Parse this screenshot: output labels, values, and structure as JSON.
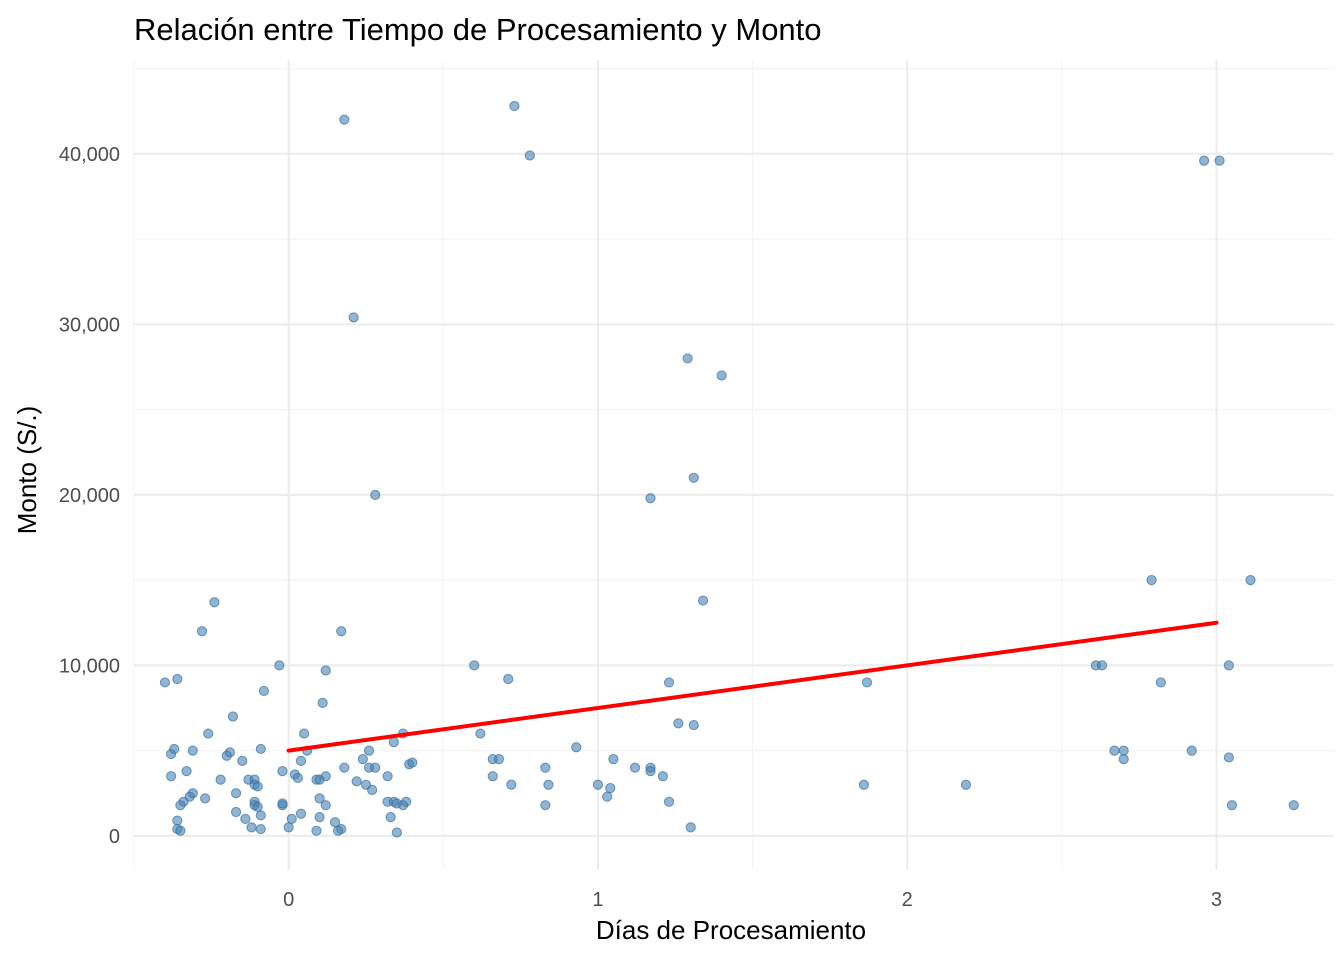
{
  "chart_data": {
    "type": "scatter",
    "title": "Relación entre Tiempo de Procesamiento y Monto",
    "xlabel": "Días de Procesamiento",
    "ylabel": "Monto (S/.)",
    "xlim": [
      -0.5,
      3.38
    ],
    "ylim": [
      -2000,
      45500
    ],
    "x_ticks": [
      0,
      1,
      2,
      3
    ],
    "x_tick_labels": [
      "0",
      "1",
      "2",
      "3"
    ],
    "y_ticks": [
      0,
      10000,
      20000,
      30000,
      40000
    ],
    "y_tick_labels": [
      "0",
      "10,000",
      "20,000",
      "30,000",
      "40,000"
    ],
    "grid": true,
    "legend": "none",
    "point_color": "#4682b4",
    "trend_color": "#ff0000",
    "trend_line": {
      "x": [
        0,
        3
      ],
      "y": [
        5000,
        12500
      ]
    },
    "points": [
      [
        0.18,
        42000
      ],
      [
        0.73,
        42800
      ],
      [
        0.78,
        39900
      ],
      [
        2.96,
        39600
      ],
      [
        3.01,
        39600
      ],
      [
        0.21,
        30400
      ],
      [
        1.29,
        28000
      ],
      [
        1.4,
        27000
      ],
      [
        1.31,
        21000
      ],
      [
        0.28,
        20000
      ],
      [
        1.17,
        19800
      ],
      [
        -0.24,
        13700
      ],
      [
        1.34,
        13800
      ],
      [
        -0.28,
        12000
      ],
      [
        0.17,
        12000
      ],
      [
        2.79,
        15000
      ],
      [
        3.11,
        15000
      ],
      [
        -0.4,
        9000
      ],
      [
        -0.36,
        9200
      ],
      [
        -0.03,
        10000
      ],
      [
        0.12,
        9700
      ],
      [
        0.6,
        10000
      ],
      [
        0.71,
        9200
      ],
      [
        1.23,
        9000
      ],
      [
        1.87,
        9000
      ],
      [
        2.61,
        10000
      ],
      [
        2.63,
        10000
      ],
      [
        2.82,
        9000
      ],
      [
        3.04,
        10000
      ],
      [
        -0.08,
        8500
      ],
      [
        0.11,
        7800
      ],
      [
        -0.18,
        7000
      ],
      [
        1.26,
        6600
      ],
      [
        1.31,
        6500
      ],
      [
        0.05,
        6000
      ],
      [
        0.62,
        6000
      ],
      [
        -0.26,
        6000
      ],
      [
        0.37,
        6000
      ],
      [
        -0.38,
        4800
      ],
      [
        -0.37,
        5100
      ],
      [
        -0.31,
        5000
      ],
      [
        -0.19,
        4900
      ],
      [
        -0.2,
        4700
      ],
      [
        -0.09,
        5100
      ],
      [
        0.06,
        5000
      ],
      [
        0.26,
        5000
      ],
      [
        0.34,
        5500
      ],
      [
        0.93,
        5200
      ],
      [
        2.67,
        5000
      ],
      [
        2.7,
        5000
      ],
      [
        2.7,
        4500
      ],
      [
        2.92,
        5000
      ],
      [
        3.04,
        4600
      ],
      [
        -0.15,
        4400
      ],
      [
        0.04,
        4400
      ],
      [
        0.24,
        4500
      ],
      [
        0.66,
        4500
      ],
      [
        0.68,
        4500
      ],
      [
        1.05,
        4500
      ],
      [
        -0.38,
        3500
      ],
      [
        -0.33,
        3800
      ],
      [
        -0.22,
        3300
      ],
      [
        -0.13,
        3300
      ],
      [
        -0.11,
        3300
      ],
      [
        -0.11,
        3000
      ],
      [
        -0.1,
        2900
      ],
      [
        -0.02,
        3800
      ],
      [
        0.02,
        3600
      ],
      [
        0.03,
        3400
      ],
      [
        0.09,
        3300
      ],
      [
        0.1,
        3300
      ],
      [
        0.12,
        3500
      ],
      [
        0.18,
        4000
      ],
      [
        0.22,
        3200
      ],
      [
        0.25,
        3000
      ],
      [
        0.26,
        4000
      ],
      [
        0.28,
        4000
      ],
      [
        0.27,
        2700
      ],
      [
        0.32,
        3500
      ],
      [
        0.39,
        4200
      ],
      [
        0.4,
        4300
      ],
      [
        0.66,
        3500
      ],
      [
        0.72,
        3000
      ],
      [
        0.83,
        4000
      ],
      [
        0.84,
        3000
      ],
      [
        1.0,
        3000
      ],
      [
        1.04,
        2800
      ],
      [
        1.03,
        2300
      ],
      [
        1.12,
        4000
      ],
      [
        1.17,
        4000
      ],
      [
        1.17,
        3800
      ],
      [
        1.21,
        3500
      ],
      [
        1.23,
        2000
      ],
      [
        1.86,
        3000
      ],
      [
        2.19,
        3000
      ],
      [
        -0.31,
        2500
      ],
      [
        -0.32,
        2300
      ],
      [
        -0.27,
        2200
      ],
      [
        -0.34,
        2000
      ],
      [
        -0.35,
        1800
      ],
      [
        -0.17,
        2500
      ],
      [
        -0.11,
        2000
      ],
      [
        -0.11,
        1800
      ],
      [
        -0.1,
        1700
      ],
      [
        -0.02,
        1800
      ],
      [
        -0.02,
        1900
      ],
      [
        0.1,
        2200
      ],
      [
        0.12,
        1800
      ],
      [
        0.32,
        2000
      ],
      [
        0.34,
        2000
      ],
      [
        0.35,
        1900
      ],
      [
        0.37,
        1800
      ],
      [
        0.38,
        2000
      ],
      [
        0.83,
        1800
      ],
      [
        3.05,
        1800
      ],
      [
        3.25,
        1800
      ],
      [
        -0.36,
        900
      ],
      [
        -0.17,
        1400
      ],
      [
        -0.14,
        1000
      ],
      [
        -0.12,
        500
      ],
      [
        -0.09,
        1200
      ],
      [
        0.01,
        1000
      ],
      [
        0.04,
        1300
      ],
      [
        0.1,
        1100
      ],
      [
        0.15,
        800
      ],
      [
        0.17,
        400
      ],
      [
        0.33,
        1100
      ],
      [
        -0.36,
        400
      ],
      [
        -0.35,
        300
      ],
      [
        -0.09,
        400
      ],
      [
        0.0,
        500
      ],
      [
        0.09,
        300
      ],
      [
        0.16,
        300
      ],
      [
        0.35,
        200
      ],
      [
        1.3,
        500
      ]
    ]
  }
}
